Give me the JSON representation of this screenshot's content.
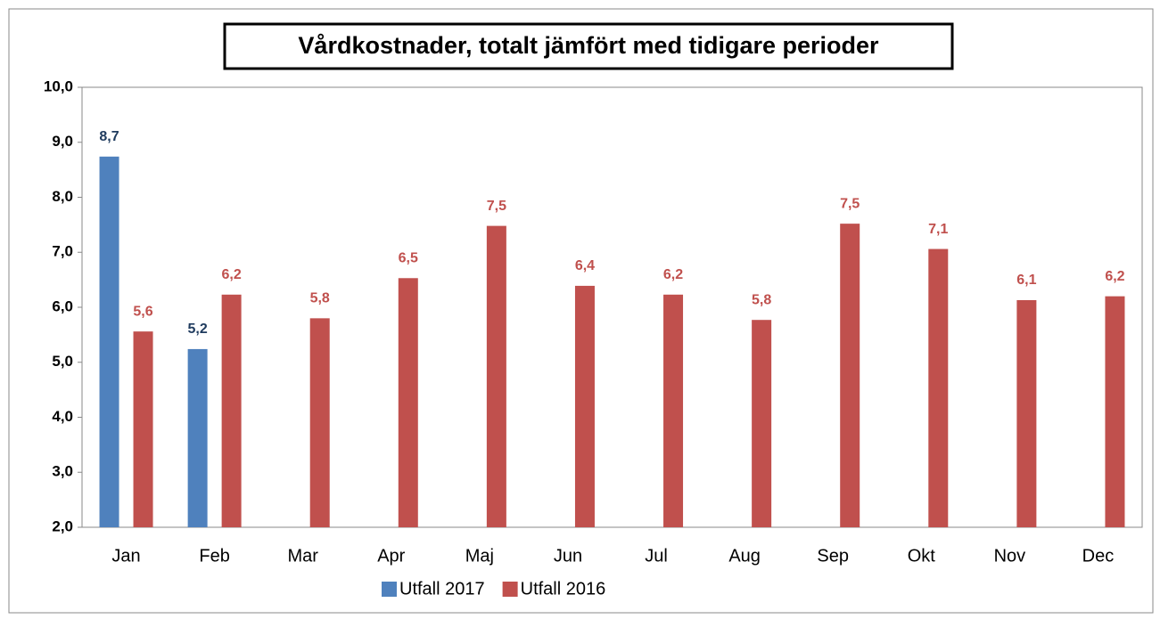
{
  "chart_data": {
    "type": "bar",
    "title": "Vårdkostnader, totalt jämfört med tidigare perioder",
    "categories": [
      "Jan",
      "Feb",
      "Mar",
      "Apr",
      "Maj",
      "Jun",
      "Jul",
      "Aug",
      "Sep",
      "Okt",
      "Nov",
      "Dec"
    ],
    "series": [
      {
        "name": "Utfall 2017",
        "color": "#4f81bd",
        "label_color": "#1f3b5e",
        "values": [
          8.74,
          5.24,
          null,
          null,
          null,
          null,
          null,
          null,
          null,
          null,
          null,
          null
        ],
        "value_labels": [
          "8,7",
          "5,2",
          null,
          null,
          null,
          null,
          null,
          null,
          null,
          null,
          null,
          null
        ]
      },
      {
        "name": "Utfall 2016",
        "color": "#c0504d",
        "label_color": "#c0504d",
        "values": [
          5.56,
          6.23,
          5.8,
          6.53,
          7.48,
          6.39,
          6.23,
          5.77,
          7.52,
          7.06,
          6.13,
          6.2
        ],
        "value_labels": [
          "5,6",
          "6,2",
          "5,8",
          "6,5",
          "7,5",
          "6,4",
          "6,2",
          "5,8",
          "7,5",
          "7,1",
          "6,1",
          "6,2"
        ]
      }
    ],
    "ylim": [
      2,
      10
    ],
    "yticks": [
      {
        "value": 2,
        "label": "2,0"
      },
      {
        "value": 3,
        "label": "3,0"
      },
      {
        "value": 4,
        "label": "4,0"
      },
      {
        "value": 5,
        "label": "5,0"
      },
      {
        "value": 6,
        "label": "6,0"
      },
      {
        "value": 7,
        "label": "7,0"
      },
      {
        "value": 8,
        "label": "8,0"
      },
      {
        "value": 9,
        "label": "9,0"
      },
      {
        "value": 10,
        "label": "10,0"
      }
    ],
    "grid": false,
    "legend": "bottom"
  }
}
